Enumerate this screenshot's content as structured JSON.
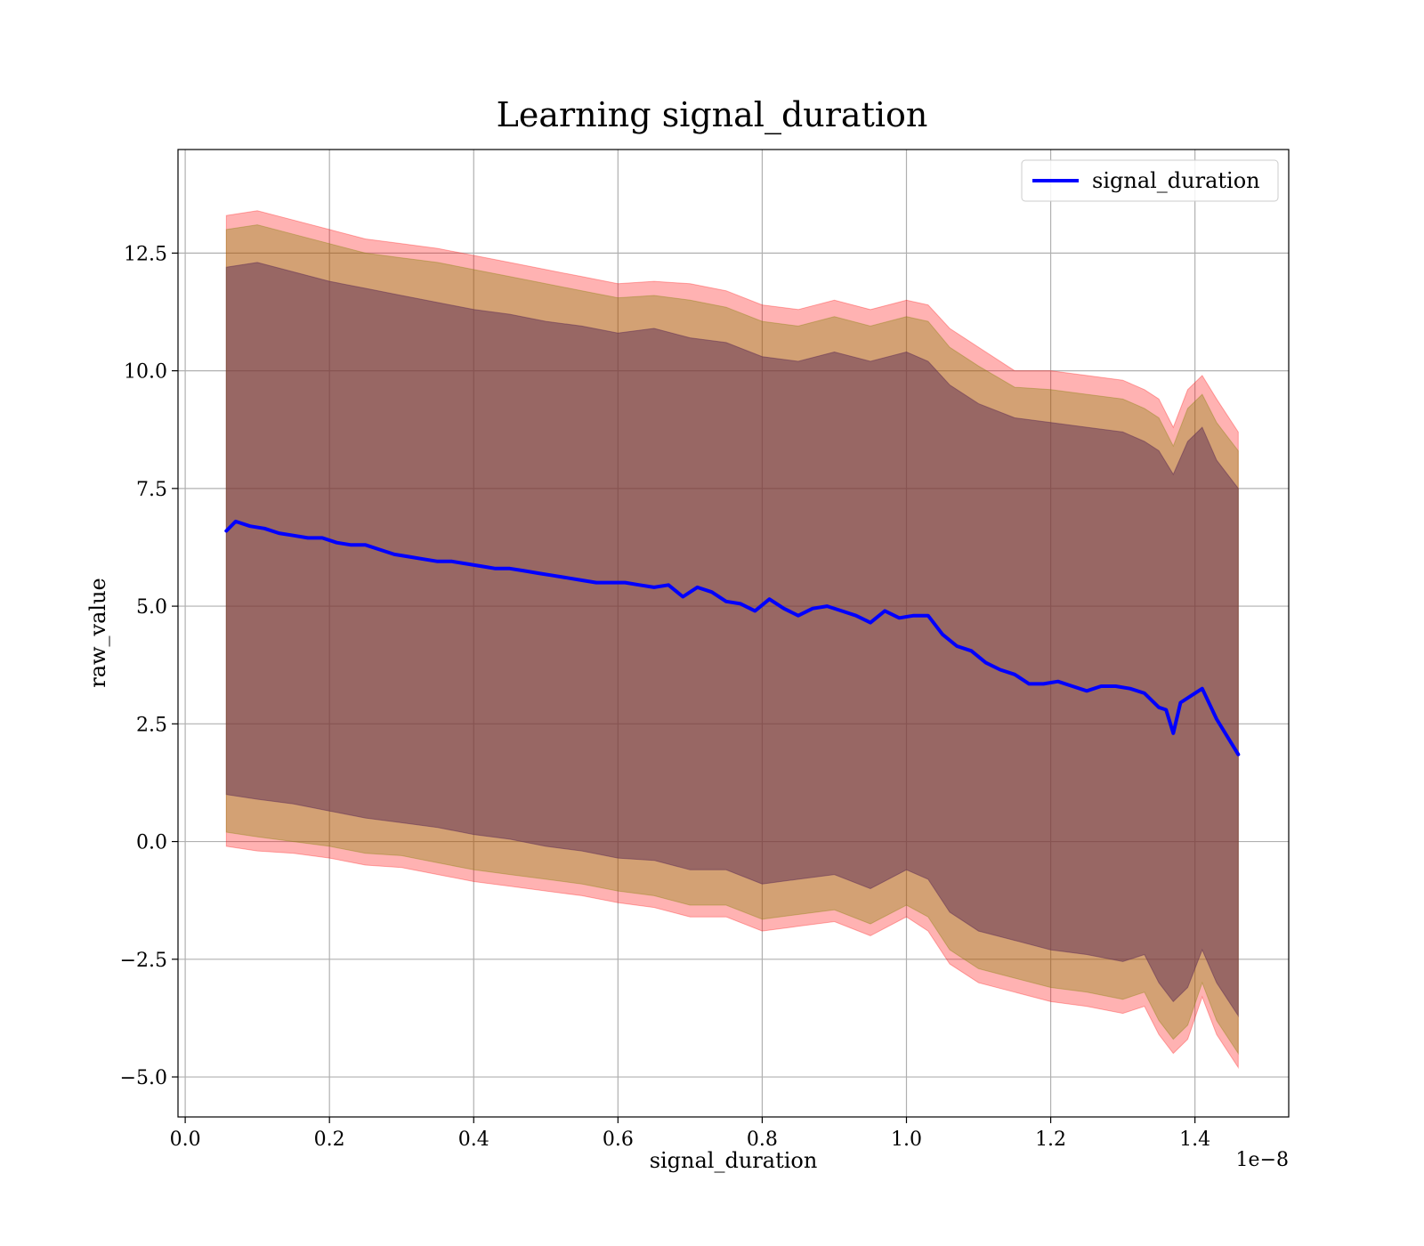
{
  "chart_data": {
    "type": "line",
    "title": "Learning signal_duration",
    "xlabel": "signal_duration",
    "ylabel": "raw_value",
    "x_offset_label": "1e−8",
    "xlim": [
      -0.01,
      1.53
    ],
    "ylim": [
      -5.85,
      14.7
    ],
    "grid": true,
    "legend": {
      "position": "top-right",
      "entries": [
        "signal_duration"
      ]
    },
    "x_ticks": [
      {
        "value": 0.0,
        "label": "0.0"
      },
      {
        "value": 0.2,
        "label": "0.2"
      },
      {
        "value": 0.4,
        "label": "0.4"
      },
      {
        "value": 0.6,
        "label": "0.6"
      },
      {
        "value": 0.8,
        "label": "0.8"
      },
      {
        "value": 1.0,
        "label": "1.0"
      },
      {
        "value": 1.2,
        "label": "1.2"
      },
      {
        "value": 1.4,
        "label": "1.4"
      }
    ],
    "y_ticks": [
      {
        "value": -5.0,
        "label": "−5.0"
      },
      {
        "value": -2.5,
        "label": "−2.5"
      },
      {
        "value": 0.0,
        "label": "0.0"
      },
      {
        "value": 2.5,
        "label": "2.5"
      },
      {
        "value": 5.0,
        "label": "5.0"
      },
      {
        "value": 7.5,
        "label": "7.5"
      },
      {
        "value": 10.0,
        "label": "10.0"
      },
      {
        "value": 12.5,
        "label": "12.5"
      }
    ],
    "series": [
      {
        "name": "signal_duration",
        "color": "#0000ff",
        "x": [
          0.057,
          0.07,
          0.09,
          0.11,
          0.13,
          0.15,
          0.17,
          0.19,
          0.21,
          0.23,
          0.25,
          0.27,
          0.29,
          0.31,
          0.33,
          0.35,
          0.37,
          0.39,
          0.41,
          0.43,
          0.45,
          0.47,
          0.49,
          0.51,
          0.53,
          0.55,
          0.57,
          0.59,
          0.61,
          0.63,
          0.65,
          0.67,
          0.69,
          0.71,
          0.73,
          0.75,
          0.77,
          0.79,
          0.81,
          0.83,
          0.85,
          0.87,
          0.89,
          0.91,
          0.93,
          0.95,
          0.97,
          0.99,
          1.01,
          1.03,
          1.05,
          1.07,
          1.09,
          1.11,
          1.13,
          1.15,
          1.17,
          1.19,
          1.21,
          1.23,
          1.25,
          1.27,
          1.29,
          1.31,
          1.33,
          1.35,
          1.36,
          1.37,
          1.38,
          1.395,
          1.41,
          1.43,
          1.46
        ],
        "values": [
          6.6,
          6.8,
          6.7,
          6.65,
          6.55,
          6.5,
          6.45,
          6.45,
          6.35,
          6.3,
          6.3,
          6.2,
          6.1,
          6.05,
          6.0,
          5.95,
          5.95,
          5.9,
          5.85,
          5.8,
          5.8,
          5.75,
          5.7,
          5.65,
          5.6,
          5.55,
          5.5,
          5.5,
          5.5,
          5.45,
          5.4,
          5.45,
          5.2,
          5.4,
          5.3,
          5.1,
          5.05,
          4.9,
          5.15,
          4.95,
          4.8,
          4.95,
          5.0,
          4.9,
          4.8,
          4.65,
          4.9,
          4.75,
          4.8,
          4.8,
          4.4,
          4.15,
          4.05,
          3.8,
          3.65,
          3.55,
          3.35,
          3.35,
          3.4,
          3.3,
          3.2,
          3.3,
          3.3,
          3.25,
          3.15,
          2.85,
          2.8,
          2.3,
          2.95,
          3.1,
          3.25,
          2.6,
          1.85
        ]
      }
    ],
    "bands": [
      {
        "name": "",
        "color": "#ff0000",
        "opacity": 0.3,
        "x": [
          0.057,
          0.1,
          0.15,
          0.2,
          0.25,
          0.3,
          0.35,
          0.4,
          0.45,
          0.5,
          0.55,
          0.6,
          0.65,
          0.7,
          0.75,
          0.8,
          0.85,
          0.9,
          0.95,
          1.0,
          1.03,
          1.06,
          1.1,
          1.15,
          1.2,
          1.25,
          1.3,
          1.33,
          1.35,
          1.37,
          1.39,
          1.41,
          1.43,
          1.46
        ],
        "upper": [
          13.3,
          13.4,
          13.2,
          13.0,
          12.8,
          12.7,
          12.6,
          12.45,
          12.3,
          12.15,
          12.0,
          11.85,
          11.9,
          11.85,
          11.7,
          11.4,
          11.3,
          11.5,
          11.3,
          11.5,
          11.4,
          10.9,
          10.5,
          10.0,
          10.0,
          9.9,
          9.8,
          9.6,
          9.4,
          8.8,
          9.6,
          9.9,
          9.4,
          8.7
        ],
        "lower": [
          -0.1,
          -0.2,
          -0.25,
          -0.35,
          -0.5,
          -0.55,
          -0.7,
          -0.85,
          -0.95,
          -1.05,
          -1.15,
          -1.3,
          -1.4,
          -1.6,
          -1.6,
          -1.9,
          -1.8,
          -1.7,
          -2.0,
          -1.6,
          -1.9,
          -2.6,
          -3.0,
          -3.2,
          -3.4,
          -3.5,
          -3.65,
          -3.5,
          -4.1,
          -4.5,
          -4.2,
          -3.3,
          -4.1,
          -4.8
        ]
      },
      {
        "name": "",
        "color": "#4b0082",
        "opacity": 0.5,
        "x": [
          0.057,
          0.1,
          0.15,
          0.2,
          0.25,
          0.3,
          0.35,
          0.4,
          0.45,
          0.5,
          0.55,
          0.6,
          0.65,
          0.7,
          0.75,
          0.8,
          0.85,
          0.9,
          0.95,
          1.0,
          1.03,
          1.06,
          1.1,
          1.15,
          1.2,
          1.25,
          1.3,
          1.33,
          1.35,
          1.37,
          1.39,
          1.41,
          1.43,
          1.46
        ],
        "upper": [
          12.2,
          12.3,
          12.1,
          11.9,
          11.75,
          11.6,
          11.45,
          11.3,
          11.2,
          11.05,
          10.95,
          10.8,
          10.9,
          10.7,
          10.6,
          10.3,
          10.2,
          10.4,
          10.2,
          10.4,
          10.2,
          9.7,
          9.3,
          9.0,
          8.9,
          8.8,
          8.7,
          8.5,
          8.3,
          7.8,
          8.5,
          8.8,
          8.1,
          7.5
        ],
        "lower": [
          1.0,
          0.9,
          0.8,
          0.65,
          0.5,
          0.4,
          0.3,
          0.15,
          0.05,
          -0.1,
          -0.2,
          -0.35,
          -0.4,
          -0.6,
          -0.6,
          -0.9,
          -0.8,
          -0.7,
          -1.0,
          -0.6,
          -0.8,
          -1.5,
          -1.9,
          -2.1,
          -2.3,
          -2.4,
          -2.55,
          -2.4,
          -3.0,
          -3.4,
          -3.1,
          -2.3,
          -3.0,
          -3.7
        ]
      },
      {
        "name": "",
        "color": "#808000",
        "opacity": 0.35,
        "x": [
          0.057,
          0.1,
          0.15,
          0.2,
          0.25,
          0.3,
          0.35,
          0.4,
          0.45,
          0.5,
          0.55,
          0.6,
          0.65,
          0.7,
          0.75,
          0.8,
          0.85,
          0.9,
          0.95,
          1.0,
          1.03,
          1.06,
          1.1,
          1.15,
          1.2,
          1.25,
          1.3,
          1.33,
          1.35,
          1.37,
          1.39,
          1.41,
          1.43,
          1.46
        ],
        "upper": [
          13.0,
          13.1,
          12.9,
          12.7,
          12.5,
          12.4,
          12.3,
          12.15,
          12.0,
          11.85,
          11.7,
          11.55,
          11.6,
          11.5,
          11.35,
          11.05,
          10.95,
          11.15,
          10.95,
          11.15,
          11.05,
          10.5,
          10.1,
          9.65,
          9.6,
          9.5,
          9.4,
          9.2,
          9.0,
          8.4,
          9.2,
          9.5,
          8.9,
          8.3
        ],
        "lower": [
          0.2,
          0.1,
          0.0,
          -0.1,
          -0.25,
          -0.3,
          -0.45,
          -0.6,
          -0.7,
          -0.8,
          -0.9,
          -1.05,
          -1.15,
          -1.35,
          -1.35,
          -1.65,
          -1.55,
          -1.45,
          -1.75,
          -1.35,
          -1.6,
          -2.3,
          -2.7,
          -2.9,
          -3.1,
          -3.2,
          -3.35,
          -3.2,
          -3.8,
          -4.2,
          -3.9,
          -3.0,
          -3.8,
          -4.5
        ]
      }
    ]
  }
}
